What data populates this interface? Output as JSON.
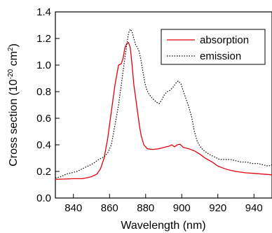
{
  "chart_data": {
    "type": "line",
    "xlabel": "Wavelength (nm)",
    "ylabel": {
      "prefix": "Cross section (10",
      "exp1": "-20",
      "middle": " cm",
      "exp2": "2",
      "suffix": ")"
    },
    "xlim": [
      830,
      950
    ],
    "ylim": [
      0.0,
      1.4
    ],
    "x_ticks": [
      840,
      860,
      880,
      900,
      920,
      940
    ],
    "y_ticks": [
      0.0,
      0.2,
      0.4,
      0.6,
      0.8,
      1.0,
      1.2,
      1.4
    ],
    "grid": false,
    "legend_position": "top-right",
    "series": [
      {
        "name": "absorption",
        "color": "#e8000b",
        "style": "solid",
        "points": [
          [
            830,
            0.14
          ],
          [
            840,
            0.145
          ],
          [
            845,
            0.145
          ],
          [
            850,
            0.16
          ],
          [
            853,
            0.18
          ],
          [
            855,
            0.22
          ],
          [
            857,
            0.3
          ],
          [
            859,
            0.45
          ],
          [
            861,
            0.65
          ],
          [
            863,
            0.85
          ],
          [
            865,
            1.0
          ],
          [
            866.5,
            1.01
          ],
          [
            867.5,
            1.05
          ],
          [
            868.5,
            1.13
          ],
          [
            869.5,
            1.16
          ],
          [
            870.5,
            1.17
          ],
          [
            871.5,
            1.13
          ],
          [
            872.5,
            1.0
          ],
          [
            873.5,
            0.85
          ],
          [
            874.5,
            0.75
          ],
          [
            875.5,
            0.65
          ],
          [
            876.5,
            0.55
          ],
          [
            877.5,
            0.47
          ],
          [
            879,
            0.4
          ],
          [
            881,
            0.37
          ],
          [
            884,
            0.365
          ],
          [
            887,
            0.37
          ],
          [
            890,
            0.38
          ],
          [
            893,
            0.39
          ],
          [
            894.5,
            0.4
          ],
          [
            896,
            0.385
          ],
          [
            897.5,
            0.4
          ],
          [
            899,
            0.405
          ],
          [
            901,
            0.38
          ],
          [
            904,
            0.37
          ],
          [
            907,
            0.355
          ],
          [
            910,
            0.33
          ],
          [
            913,
            0.3
          ],
          [
            917,
            0.27
          ],
          [
            920,
            0.24
          ],
          [
            922,
            0.23
          ],
          [
            925,
            0.215
          ],
          [
            930,
            0.2
          ],
          [
            935,
            0.19
          ],
          [
            940,
            0.185
          ],
          [
            945,
            0.18
          ],
          [
            950,
            0.175
          ]
        ]
      },
      {
        "name": "emission",
        "color": "#000000",
        "style": "dotted",
        "points": [
          [
            830,
            0.15
          ],
          [
            833,
            0.16
          ],
          [
            836,
            0.18
          ],
          [
            839,
            0.19
          ],
          [
            842,
            0.2
          ],
          [
            845,
            0.22
          ],
          [
            848,
            0.24
          ],
          [
            851,
            0.26
          ],
          [
            854,
            0.29
          ],
          [
            857,
            0.31
          ],
          [
            859,
            0.34
          ],
          [
            861,
            0.4
          ],
          [
            863,
            0.55
          ],
          [
            865,
            0.7
          ],
          [
            866.5,
            0.85
          ],
          [
            868,
            1.0
          ],
          [
            869.5,
            1.15
          ],
          [
            870.5,
            1.24
          ],
          [
            871.5,
            1.27
          ],
          [
            872.5,
            1.25
          ],
          [
            873.5,
            1.2
          ],
          [
            874.5,
            1.15
          ],
          [
            875.5,
            1.13
          ],
          [
            876.5,
            1.1
          ],
          [
            877.5,
            1.03
          ],
          [
            878.5,
            0.95
          ],
          [
            879.5,
            0.87
          ],
          [
            880.5,
            0.82
          ],
          [
            881.5,
            0.79
          ],
          [
            883,
            0.76
          ],
          [
            884.5,
            0.74
          ],
          [
            886,
            0.72
          ],
          [
            887.5,
            0.71
          ],
          [
            889,
            0.74
          ],
          [
            890.5,
            0.78
          ],
          [
            892,
            0.8
          ],
          [
            893.5,
            0.81
          ],
          [
            895,
            0.83
          ],
          [
            896.5,
            0.86
          ],
          [
            898,
            0.88
          ],
          [
            899.5,
            0.86
          ],
          [
            901,
            0.8
          ],
          [
            902.5,
            0.74
          ],
          [
            904,
            0.68
          ],
          [
            905.5,
            0.61
          ],
          [
            907,
            0.5
          ],
          [
            908.5,
            0.43
          ],
          [
            910,
            0.39
          ],
          [
            912,
            0.36
          ],
          [
            915,
            0.33
          ],
          [
            918,
            0.31
          ],
          [
            921,
            0.29
          ],
          [
            924,
            0.29
          ],
          [
            927,
            0.29
          ],
          [
            930,
            0.28
          ],
          [
            933,
            0.27
          ],
          [
            936,
            0.27
          ],
          [
            939,
            0.26
          ],
          [
            942,
            0.26
          ],
          [
            945,
            0.25
          ],
          [
            948,
            0.24
          ],
          [
            950,
            0.25
          ]
        ]
      }
    ]
  }
}
